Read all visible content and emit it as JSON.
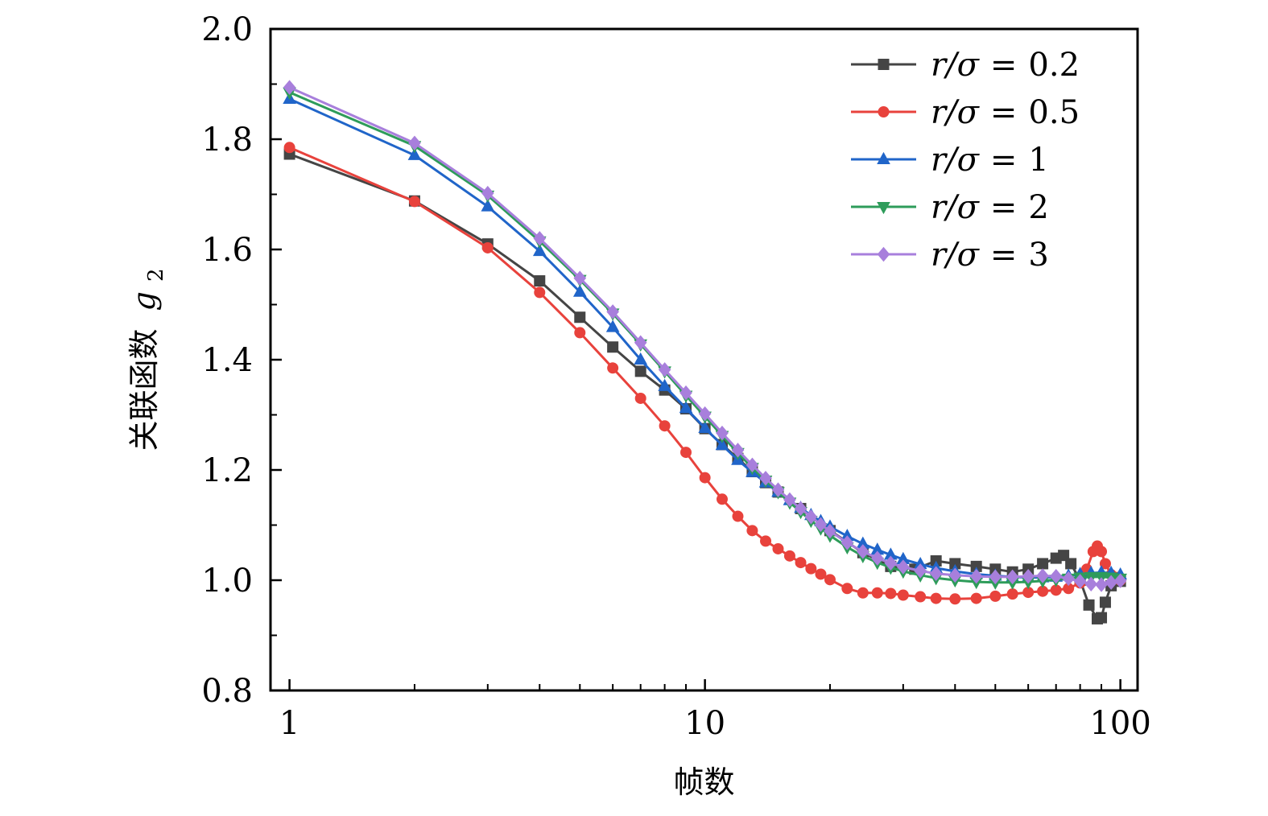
{
  "chart_data": {
    "type": "line",
    "title": "",
    "xlabel": "帧数",
    "ylabel_text": "关联函数",
    "ylabel_symbol": "g",
    "ylabel_subscript": "2",
    "xscale": "log",
    "xlim": [
      0.9,
      110
    ],
    "ylim": [
      0.8,
      2.0
    ],
    "xticks": [
      1,
      10,
      100
    ],
    "xtick_labels": [
      "1",
      "10",
      "100"
    ],
    "yticks": [
      0.8,
      1.0,
      1.2,
      1.4,
      1.6,
      1.8,
      2.0
    ],
    "ytick_labels": [
      "0.8",
      "1.0",
      "1.2",
      "1.4",
      "1.6",
      "1.8",
      "2.0"
    ],
    "legend_position": "top-right",
    "series": [
      {
        "name": "r/σ = 0.2",
        "label_var": "r/σ",
        "label_op": "=",
        "label_value": "0.2",
        "color": "#454545",
        "marker": "square",
        "x": [
          1,
          2,
          3,
          4,
          5,
          6,
          7,
          8,
          9,
          10,
          11,
          12,
          13,
          14,
          15,
          17,
          20,
          24,
          28,
          32,
          36,
          40,
          45,
          50,
          55,
          60,
          65,
          70,
          73,
          76,
          80,
          84,
          88,
          90,
          92,
          95,
          98,
          100
        ],
        "y": [
          1.773,
          1.688,
          1.61,
          1.543,
          1.477,
          1.423,
          1.379,
          1.345,
          1.311,
          1.275,
          1.246,
          1.221,
          1.197,
          1.177,
          1.16,
          1.13,
          1.09,
          1.05,
          1.025,
          1.02,
          1.035,
          1.03,
          1.025,
          1.02,
          1.015,
          1.02,
          1.03,
          1.04,
          1.045,
          1.03,
          1.0,
          0.955,
          0.93,
          0.932,
          0.96,
          0.99,
          1.0,
          0.998
        ]
      },
      {
        "name": "r/σ = 0.5",
        "label_var": "r/σ",
        "label_op": "=",
        "label_value": "0.5",
        "color": "#e8423c",
        "marker": "circle",
        "x": [
          1,
          2,
          3,
          4,
          5,
          6,
          7,
          8,
          9,
          10,
          11,
          12,
          13,
          14,
          15,
          16,
          17,
          18,
          19,
          20,
          22,
          24,
          26,
          28,
          30,
          33,
          36,
          40,
          45,
          50,
          55,
          60,
          65,
          70,
          75,
          80,
          83,
          86,
          88,
          90,
          92,
          95,
          98,
          100
        ],
        "y": [
          1.785,
          1.687,
          1.603,
          1.522,
          1.449,
          1.385,
          1.33,
          1.28,
          1.232,
          1.186,
          1.147,
          1.116,
          1.09,
          1.071,
          1.057,
          1.044,
          1.032,
          1.021,
          1.011,
          1.001,
          0.985,
          0.977,
          0.977,
          0.976,
          0.973,
          0.97,
          0.967,
          0.966,
          0.967,
          0.971,
          0.975,
          0.978,
          0.98,
          0.982,
          0.985,
          0.995,
          1.02,
          1.052,
          1.062,
          1.052,
          1.03,
          1.01,
          1.005,
          1.0
        ]
      },
      {
        "name": "r/σ = 1",
        "label_var": "r/σ",
        "label_op": "=",
        "label_value": "1",
        "color": "#2065c9",
        "marker": "triangle-up",
        "x": [
          1,
          2,
          3,
          4,
          5,
          6,
          7,
          8,
          9,
          10,
          11,
          12,
          13,
          14,
          15,
          16,
          17,
          18,
          19,
          20,
          22,
          24,
          26,
          28,
          30,
          33,
          36,
          40,
          45,
          50,
          55,
          60,
          65,
          70,
          75,
          80,
          85,
          90,
          95,
          100
        ],
        "y": [
          1.873,
          1.771,
          1.678,
          1.597,
          1.523,
          1.459,
          1.4,
          1.352,
          1.312,
          1.276,
          1.245,
          1.218,
          1.196,
          1.177,
          1.16,
          1.145,
          1.131,
          1.118,
          1.107,
          1.097,
          1.08,
          1.066,
          1.055,
          1.046,
          1.038,
          1.029,
          1.022,
          1.016,
          1.011,
          1.008,
          1.006,
          1.005,
          1.005,
          1.006,
          1.008,
          1.011,
          1.013,
          1.014,
          1.013,
          1.01
        ]
      },
      {
        "name": "r/σ = 2",
        "label_var": "r/σ",
        "label_op": "=",
        "label_value": "2",
        "color": "#2e9c5a",
        "marker": "triangle-down",
        "x": [
          1,
          2,
          3,
          4,
          5,
          6,
          7,
          8,
          9,
          10,
          11,
          12,
          13,
          14,
          15,
          16,
          17,
          18,
          19,
          20,
          22,
          24,
          26,
          28,
          30,
          33,
          36,
          40,
          45,
          50,
          55,
          60,
          65,
          70,
          75,
          80,
          85,
          90,
          95,
          100
        ],
        "y": [
          1.885,
          1.788,
          1.698,
          1.615,
          1.545,
          1.484,
          1.428,
          1.379,
          1.335,
          1.297,
          1.262,
          1.231,
          1.204,
          1.181,
          1.16,
          1.141,
          1.124,
          1.108,
          1.094,
          1.081,
          1.06,
          1.044,
          1.032,
          1.023,
          1.016,
          1.009,
          1.004,
          1.0,
          0.997,
          0.996,
          0.996,
          0.997,
          0.999,
          1.001,
          1.003,
          1.005,
          1.006,
          1.006,
          1.005,
          1.003
        ]
      },
      {
        "name": "r/σ = 3",
        "label_var": "r/σ",
        "label_op": "=",
        "label_value": "3",
        "color": "#a87fdc",
        "marker": "diamond",
        "x": [
          1,
          2,
          3,
          4,
          5,
          6,
          7,
          8,
          9,
          10,
          11,
          12,
          13,
          14,
          15,
          16,
          17,
          18,
          19,
          20,
          22,
          24,
          26,
          28,
          30,
          33,
          36,
          40,
          45,
          50,
          55,
          60,
          65,
          70,
          75,
          80,
          85,
          90,
          95,
          100
        ],
        "y": [
          1.894,
          1.793,
          1.702,
          1.62,
          1.548,
          1.487,
          1.431,
          1.382,
          1.34,
          1.302,
          1.267,
          1.236,
          1.209,
          1.185,
          1.164,
          1.146,
          1.13,
          1.115,
          1.101,
          1.089,
          1.068,
          1.052,
          1.04,
          1.031,
          1.024,
          1.017,
          1.012,
          1.009,
          1.007,
          1.006,
          1.006,
          1.007,
          1.008,
          1.007,
          1.003,
          0.998,
          0.993,
          0.992,
          0.996,
          0.999
        ]
      }
    ]
  }
}
